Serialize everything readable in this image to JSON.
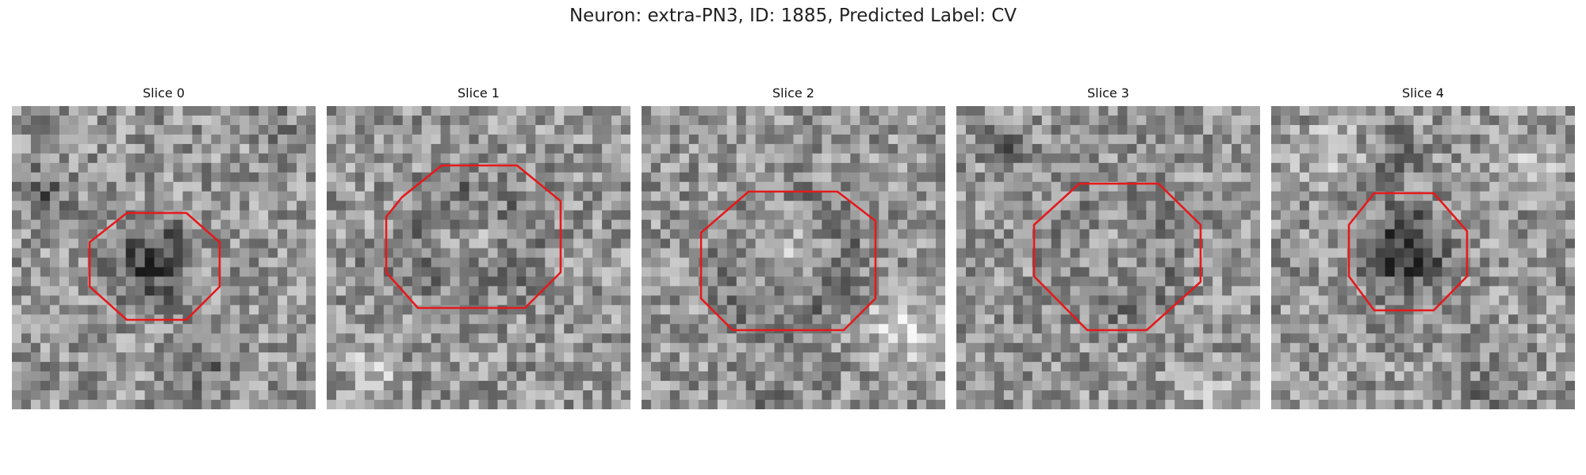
{
  "figure": {
    "title": "Neuron: extra-PN3, ID: 1885, Predicted Label: CV"
  },
  "panels": [
    {
      "title": "Slice 0",
      "outline_color": "#e41a1c",
      "image": "grayscale-microscopy-patch-icon",
      "center_tone": "dark"
    },
    {
      "title": "Slice 1",
      "outline_color": "#e41a1c",
      "image": "grayscale-microscopy-patch-icon",
      "center_tone": "light"
    },
    {
      "title": "Slice 2",
      "outline_color": "#e41a1c",
      "image": "grayscale-microscopy-patch-icon",
      "center_tone": "light"
    },
    {
      "title": "Slice 3",
      "outline_color": "#e41a1c",
      "image": "grayscale-microscopy-patch-icon",
      "center_tone": "light"
    },
    {
      "title": "Slice 4",
      "outline_color": "#e41a1c",
      "image": "grayscale-microscopy-patch-icon",
      "center_tone": "dark"
    }
  ]
}
